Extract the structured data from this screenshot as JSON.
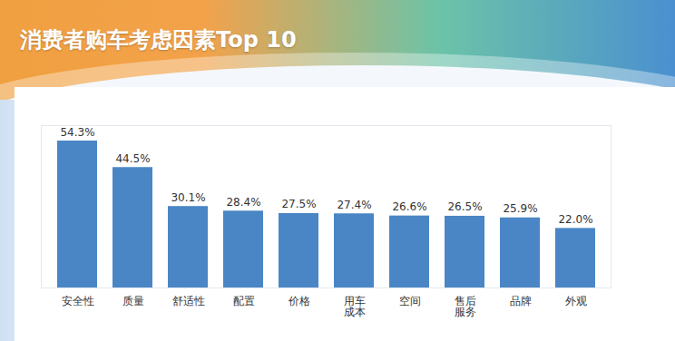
{
  "chart_data": {
    "type": "bar",
    "title": "消费者购车考虑因素Top 10",
    "categories": [
      "安全性",
      "质量",
      "舒适性",
      "配置",
      "价格",
      "用车\n成本",
      "空间",
      "售后\n服务",
      "品牌",
      "外观"
    ],
    "values": [
      54.3,
      44.5,
      30.1,
      28.4,
      27.5,
      27.4,
      26.6,
      26.5,
      25.9,
      22.0
    ],
    "value_labels": [
      "54.3%",
      "44.5%",
      "30.1%",
      "28.4%",
      "27.5%",
      "27.4%",
      "26.6%",
      "26.5%",
      "25.9%",
      "22.0%"
    ],
    "color": "#4a86c6",
    "ylim": [
      0,
      60
    ],
    "data_labels": true,
    "tick_labels": "x"
  }
}
